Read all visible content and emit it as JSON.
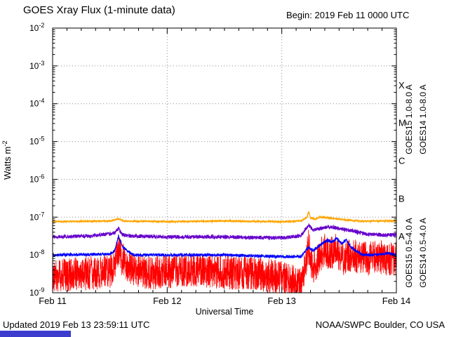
{
  "chart_data": {
    "type": "line",
    "title": "GOES Xray Flux (1-minute data)",
    "begin_label": "Begin: 2019 Feb 11 0000 UTC",
    "xlabel": "Universal Time",
    "ylabel_base": "Watts m",
    "ylabel_exponent": "-2",
    "xlim_hours": [
      0,
      72
    ],
    "ylim": [
      1e-09,
      0.01
    ],
    "x_day_ticks": [
      {
        "hour": 0,
        "label": "Feb 11"
      },
      {
        "hour": 24,
        "label": "Feb 12"
      },
      {
        "hour": 48,
        "label": "Feb 13"
      },
      {
        "hour": 72,
        "label": "Feb 14"
      }
    ],
    "x_minor_tick_hours": 3,
    "y_decade_exponents": [
      -2,
      -3,
      -4,
      -5,
      -6,
      -7,
      -8,
      -9
    ],
    "grid_decades": [
      -3,
      -4,
      -5,
      -6,
      -7,
      -8
    ],
    "grid_hours": [
      24,
      48
    ],
    "flare_classes": [
      {
        "label": "X",
        "log_center": -3.5
      },
      {
        "label": "M",
        "log_center": -4.5
      },
      {
        "label": "C",
        "log_center": -5.5
      },
      {
        "label": "B",
        "log_center": -6.5
      },
      {
        "label": "A",
        "log_center": -7.5
      }
    ],
    "series": [
      {
        "name": "GOES15 1.0-8.0 A",
        "color": "#ff0000",
        "width": 0.8,
        "noise_log": 0.45,
        "points": [
          [
            0,
            2.8e-09
          ],
          [
            6,
            3.2e-09
          ],
          [
            12,
            3.5e-09
          ],
          [
            13,
            6.3e-09
          ],
          [
            13.8,
            1.3e-08
          ],
          [
            14.5,
            7.9e-09
          ],
          [
            16,
            5e-09
          ],
          [
            20,
            3.2e-09
          ],
          [
            24,
            3.5e-09
          ],
          [
            30,
            4e-09
          ],
          [
            36,
            3.5e-09
          ],
          [
            42,
            3.2e-09
          ],
          [
            48,
            2.5e-09
          ],
          [
            50,
            2e-09
          ],
          [
            52,
            1.8e-09
          ],
          [
            53,
            5e-09
          ],
          [
            53.6,
            1.8e-08
          ],
          [
            54.2,
            6.3e-09
          ],
          [
            55,
            4.5e-09
          ],
          [
            56,
            1e-08
          ],
          [
            57,
            1.3e-08
          ],
          [
            58,
            1e-08
          ],
          [
            59,
            1.4e-08
          ],
          [
            60,
            1.1e-08
          ],
          [
            61,
            7.9e-09
          ],
          [
            62,
            1e-08
          ],
          [
            64,
            8.9e-09
          ],
          [
            66,
            7.9e-09
          ],
          [
            68,
            8.9e-09
          ],
          [
            70,
            7.9e-09
          ],
          [
            72,
            7.9e-09
          ]
        ]
      },
      {
        "name": "GOES15 0.5-4.0 A",
        "color": "#0000ff",
        "width": 1,
        "noise_log": 0.04,
        "points": [
          [
            0,
            1e-08
          ],
          [
            12,
            1.05e-08
          ],
          [
            13,
            1.3e-08
          ],
          [
            13.8,
            3.2e-08
          ],
          [
            14.5,
            1.8e-08
          ],
          [
            15.5,
            1.3e-08
          ],
          [
            17,
            1e-08
          ],
          [
            24,
            1e-08
          ],
          [
            36,
            1e-08
          ],
          [
            48,
            9e-09
          ],
          [
            52,
            9e-09
          ],
          [
            53.6,
            1.6e-08
          ],
          [
            54.5,
            1.3e-08
          ],
          [
            56,
            1.8e-08
          ],
          [
            57.5,
            2.5e-08
          ],
          [
            58.5,
            2.2e-08
          ],
          [
            59.5,
            2.8e-08
          ],
          [
            60.5,
            2e-08
          ],
          [
            61.5,
            2.5e-08
          ],
          [
            62.5,
            1.6e-08
          ],
          [
            63.5,
            1.3e-08
          ],
          [
            65,
            1e-08
          ],
          [
            68,
            1e-08
          ],
          [
            70,
            1.1e-08
          ],
          [
            72,
            1e-08
          ]
        ]
      },
      {
        "name": "GOES14 0.5-4.0 A",
        "color": "#6600cc",
        "width": 1,
        "noise_log": 0.05,
        "points": [
          [
            0,
            3e-08
          ],
          [
            8,
            3.2e-08
          ],
          [
            11,
            3.5e-08
          ],
          [
            13,
            3.8e-08
          ],
          [
            13.8,
            5e-08
          ],
          [
            14.5,
            3.5e-08
          ],
          [
            16,
            3.2e-08
          ],
          [
            24,
            3e-08
          ],
          [
            36,
            3e-08
          ],
          [
            48,
            2.8e-08
          ],
          [
            52,
            3.2e-08
          ],
          [
            53.6,
            6.3e-08
          ],
          [
            54.5,
            4.5e-08
          ],
          [
            56,
            5e-08
          ],
          [
            58,
            5.6e-08
          ],
          [
            60,
            5e-08
          ],
          [
            62,
            4.5e-08
          ],
          [
            64,
            4e-08
          ],
          [
            66,
            3.5e-08
          ],
          [
            68,
            3.5e-08
          ],
          [
            70,
            3.3e-08
          ],
          [
            72,
            3.5e-08
          ]
        ]
      },
      {
        "name": "GOES14 1.0-8.0 A",
        "color": "#ffa500",
        "width": 1.2,
        "noise_log": 0.02,
        "points": [
          [
            0,
            7.6e-08
          ],
          [
            12,
            7.9e-08
          ],
          [
            13.8,
            8.9e-08
          ],
          [
            15,
            7.9e-08
          ],
          [
            24,
            7.6e-08
          ],
          [
            36,
            7.9e-08
          ],
          [
            48,
            7.6e-08
          ],
          [
            52,
            7.9e-08
          ],
          [
            53.3,
            1e-07
          ],
          [
            53.6,
            1.4e-07
          ],
          [
            54.0,
            9.5e-08
          ],
          [
            55,
            8.9e-08
          ],
          [
            56,
            1e-07
          ],
          [
            58,
            9.5e-08
          ],
          [
            60,
            8.9e-08
          ],
          [
            62,
            8.3e-08
          ],
          [
            64,
            7.9e-08
          ],
          [
            68,
            7.9e-08
          ],
          [
            72,
            7.9e-08
          ]
        ]
      }
    ],
    "right_labels": [
      {
        "text": "GOES15 1.0-8.0 A",
        "color": "#ff0000",
        "column": 0,
        "half": "top"
      },
      {
        "text": "GOES14 1.0-8.0 A",
        "color": "#ffa500",
        "column": 1,
        "half": "top"
      },
      {
        "text": "GOES15 0.5-4.0 A",
        "color": "#0000ff",
        "column": 0,
        "half": "bottom"
      },
      {
        "text": "GOES14 0.5-4.0 A",
        "color": "#6600cc",
        "column": 1,
        "half": "bottom"
      }
    ]
  },
  "footer": {
    "updated": "Updated 2019 Feb 13 23:59:11 UTC",
    "credit": "NOAA/SWPC Boulder, CO USA"
  },
  "colors": {
    "grid": "#666666",
    "axis": "#000000",
    "bottom_bar": "#3c3ccf"
  }
}
